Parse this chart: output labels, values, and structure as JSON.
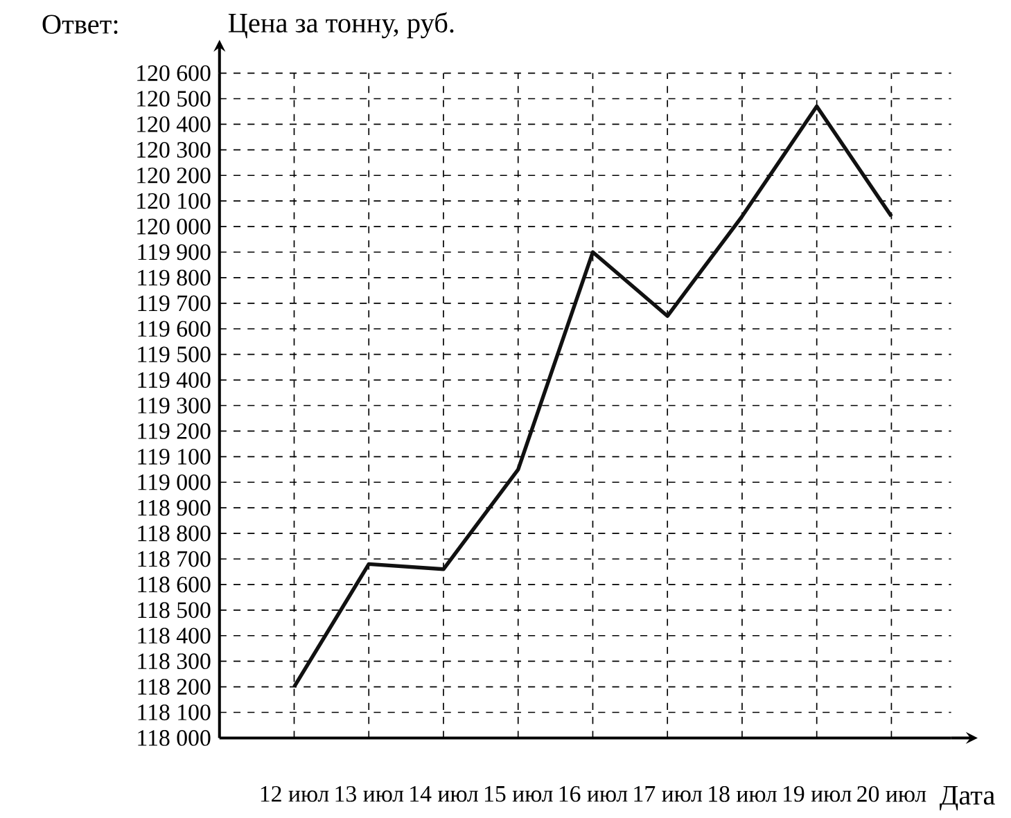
{
  "chart_data": {
    "type": "line",
    "ylabel": "Цена за тонну, руб.",
    "xlabel": "Дата",
    "annotations": [
      "Ответ:"
    ],
    "categories": [
      "12 июл",
      "13 июл",
      "14 июл",
      "15 июл",
      "16 июл",
      "17 июл",
      "18 июл",
      "19 июл",
      "20 июл"
    ],
    "series": [
      {
        "color": "#111111",
        "values": [
          118200,
          118680,
          118660,
          119050,
          119900,
          119650,
          120040,
          120470,
          120040
        ]
      }
    ],
    "ylim": [
      118000,
      120600
    ],
    "yticks": [
      {
        "value": 118000,
        "label": "118 000"
      },
      {
        "value": 118100,
        "label": "118 100"
      },
      {
        "value": 118200,
        "label": "118 200"
      },
      {
        "value": 118300,
        "label": "118 300"
      },
      {
        "value": 118400,
        "label": "118 400"
      },
      {
        "value": 118500,
        "label": "118 500"
      },
      {
        "value": 118600,
        "label": "118 600"
      },
      {
        "value": 118700,
        "label": "118 700"
      },
      {
        "value": 118800,
        "label": "118 800"
      },
      {
        "value": 118900,
        "label": "118 900"
      },
      {
        "value": 119000,
        "label": "119 000"
      },
      {
        "value": 119100,
        "label": "119 100"
      },
      {
        "value": 119200,
        "label": "119 200"
      },
      {
        "value": 119300,
        "label": "119 300"
      },
      {
        "value": 119400,
        "label": "119 400"
      },
      {
        "value": 119500,
        "label": "119 500"
      },
      {
        "value": 119600,
        "label": "119 600"
      },
      {
        "value": 119700,
        "label": "119 700"
      },
      {
        "value": 119800,
        "label": "119 800"
      },
      {
        "value": 119900,
        "label": "119 900"
      },
      {
        "value": 120000,
        "label": "120 000"
      },
      {
        "value": 120100,
        "label": "120 100"
      },
      {
        "value": 120200,
        "label": "120 200"
      },
      {
        "value": 120300,
        "label": "120 300"
      },
      {
        "value": 120400,
        "label": "120 400"
      },
      {
        "value": 120500,
        "label": "120 500"
      },
      {
        "value": 120600,
        "label": "120 600"
      }
    ],
    "grid": true,
    "line_style": "solid"
  }
}
